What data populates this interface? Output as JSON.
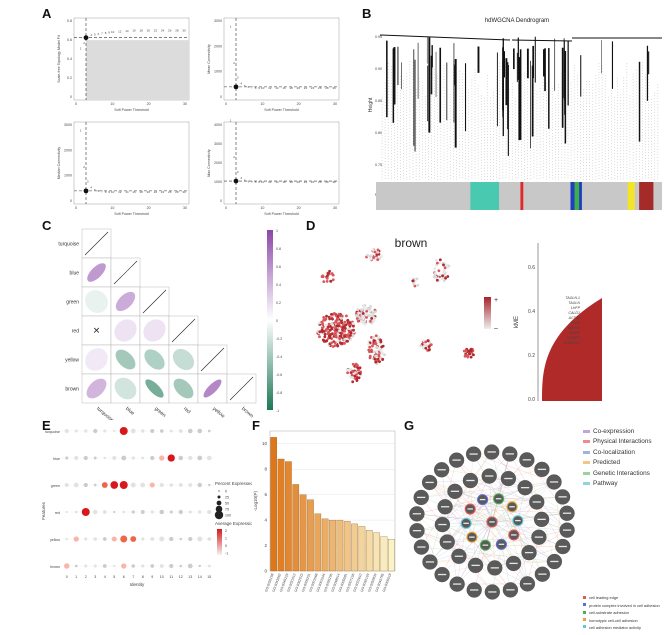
{
  "panels": {
    "A": "A",
    "B": "B",
    "C": "C",
    "D": "D",
    "E": "E",
    "F": "F",
    "G": "G"
  },
  "panel_A": {
    "plots": [
      {
        "ylabel": "Scale-free Topology Model Fit",
        "xlabel": "Soft Power Threshold",
        "yticks": [
          "0.8",
          "0.6",
          "0.4",
          "0.2",
          "0"
        ],
        "xticks": [
          "0",
          "10",
          "20",
          "30"
        ]
      },
      {
        "ylabel": "Mean Connectivity",
        "xlabel": "Soft Power Threshold",
        "yticks": [
          "3000",
          "2000",
          "1000",
          "0"
        ],
        "xticks": [
          "0",
          "10",
          "20",
          "30"
        ]
      },
      {
        "ylabel": "Median Connectivity",
        "xlabel": "Soft Power Threshold",
        "yticks": [
          "3000",
          "2000",
          "1000",
          "0"
        ],
        "xticks": [
          "0",
          "10",
          "20",
          "30"
        ]
      },
      {
        "ylabel": "Max Connectivity",
        "xlabel": "Soft Power Threshold",
        "yticks": [
          "4000",
          "3000",
          "2000",
          "1000",
          "0"
        ],
        "xticks": [
          "0",
          "10",
          "20",
          "30"
        ]
      }
    ],
    "power_labels": [
      "1",
      "2",
      "3",
      "4",
      "5",
      "6",
      "7",
      "8",
      "9",
      "10",
      "12",
      "14",
      "16",
      "18",
      "20",
      "22",
      "24",
      "26",
      "28",
      "30"
    ]
  },
  "panel_B": {
    "title": "hdWGCNA Dendrogram",
    "ylabel": "Height",
    "yticks": [
      "0.95",
      "0.90",
      "0.85",
      "0.80",
      "0.75"
    ],
    "module_label": "Module colors",
    "module_bars": [
      {
        "color": "#48c9b0",
        "from": 0.33,
        "to": 0.43
      },
      {
        "color": "#e02828",
        "from": 0.505,
        "to": 0.515
      },
      {
        "color": "#1f3fbf",
        "from": 0.68,
        "to": 0.695
      },
      {
        "color": "#3cb043",
        "from": 0.695,
        "to": 0.71
      },
      {
        "color": "#1f3fbf",
        "from": 0.71,
        "to": 0.72
      },
      {
        "color": "#f3e427",
        "from": 0.88,
        "to": 0.905
      },
      {
        "color": "#a52a2a",
        "from": 0.92,
        "to": 0.97
      }
    ]
  },
  "panel_C": {
    "modules": [
      "turquoise",
      "blue",
      "green",
      "red",
      "yellow",
      "brown"
    ],
    "colorbar_ticks": [
      "1",
      "0.8",
      "0.6",
      "0.4",
      "0.2",
      "0",
      "-0.2",
      "-0.4",
      "-0.6",
      "-0.8",
      "-1"
    ],
    "cells": [
      {
        "r": 1,
        "c": 0,
        "v": 0.55
      },
      {
        "r": 2,
        "c": 0,
        "v": -0.1
      },
      {
        "r": 2,
        "c": 1,
        "v": 0.45
      },
      {
        "r": 3,
        "c": 0,
        "v": 0.0,
        "x": true
      },
      {
        "r": 3,
        "c": 1,
        "v": 0.15
      },
      {
        "r": 3,
        "c": 2,
        "v": 0.15
      },
      {
        "r": 4,
        "c": 0,
        "v": 0.12
      },
      {
        "r": 4,
        "c": 1,
        "v": -0.4
      },
      {
        "r": 4,
        "c": 2,
        "v": -0.35
      },
      {
        "r": 4,
        "c": 3,
        "v": -0.25
      },
      {
        "r": 5,
        "c": 0,
        "v": 0.4
      },
      {
        "r": 5,
        "c": 1,
        "v": -0.2
      },
      {
        "r": 5,
        "c": 2,
        "v": -0.6
      },
      {
        "r": 5,
        "c": 3,
        "v": -0.4
      },
      {
        "r": 5,
        "c": 4,
        "v": 0.65
      }
    ]
  },
  "panel_D": {
    "title": "brown",
    "ylabel": "kME",
    "yticks": [
      "0.6",
      "0.4",
      "0.2",
      "0.0"
    ],
    "legend_plus": "+",
    "legend_minus": "–",
    "genes": [
      "TAGLN,1",
      "TAGLN",
      "LHFP",
      "CALD1",
      "ACTA2",
      "TPM2",
      "MEF2C",
      "ADIRF",
      "IGFBP7",
      "SPARCL1"
    ]
  },
  "panel_E": {
    "ylabel": "Features",
    "xlabel": "Identity",
    "features": [
      "turquoise",
      "blue",
      "green",
      "red",
      "yellow",
      "brown"
    ],
    "identities": [
      "0",
      "1",
      "2",
      "3",
      "4",
      "5",
      "6",
      "7",
      "8",
      "9",
      "10",
      "11",
      "12",
      "13",
      "14",
      "15"
    ],
    "legend_pct_title": "Percent Expressed",
    "legend_pct": [
      "0",
      "25",
      "50",
      "75",
      "100"
    ],
    "legend_avg_title": "Average Expression",
    "legend_avg": [
      "2",
      "1",
      "0",
      "-1"
    ]
  },
  "panel_F": {
    "ylabel": "-Log10(P)",
    "yticks": [
      "10",
      "8",
      "6",
      "4",
      "2",
      "0"
    ],
    "ylim": [
      0,
      11
    ],
    "bars": [
      {
        "label": "GO:0030198",
        "value": 10.5
      },
      {
        "label": "GO:0043062",
        "value": 8.8
      },
      {
        "label": "GO:0045229",
        "value": 8.6
      },
      {
        "label": "GO:0031012",
        "value": 6.8
      },
      {
        "label": "GO:0062023",
        "value": 6.0
      },
      {
        "label": "GO:0005201",
        "value": 5.6
      },
      {
        "label": "GO:0001568",
        "value": 4.5
      },
      {
        "label": "GO:0001944",
        "value": 4.1
      },
      {
        "label": "GO:0035295",
        "value": 4.0
      },
      {
        "label": "GO:0048514",
        "value": 4.0
      },
      {
        "label": "GO:0005581",
        "value": 3.9
      },
      {
        "label": "GO:0007155",
        "value": 3.7
      },
      {
        "label": "GO:0022610",
        "value": 3.5
      },
      {
        "label": "GO:0030199",
        "value": 3.2
      },
      {
        "label": "GO:0050839",
        "value": 3.0
      },
      {
        "label": "GO:0045785",
        "value": 2.7
      },
      {
        "label": "GO:0005518",
        "value": 2.5
      }
    ]
  },
  "panel_G": {
    "legend_types": [
      {
        "label": "Co-expression",
        "color": "#c4a6d6"
      },
      {
        "label": "Physical Interactions",
        "color": "#f08b8b"
      },
      {
        "label": "Co-localization",
        "color": "#9fb4d8"
      },
      {
        "label": "Predicted",
        "color": "#f5c48a"
      },
      {
        "label": "Genetic Interactions",
        "color": "#9ad39a"
      },
      {
        "label": "Pathway",
        "color": "#8fd4e0"
      }
    ],
    "legend_functions": [
      {
        "label": "cell leading edge",
        "color": "#e05a5a"
      },
      {
        "label": "protein complex involved in cell adhesion",
        "color": "#5b6fd6"
      },
      {
        "label": "cell-substrate adhesion",
        "color": "#4caf50"
      },
      {
        "label": "homotypic cell-cell adhesion",
        "color": "#e8a33c"
      },
      {
        "label": "cell adhesion mediator activity",
        "color": "#5fc9d9"
      }
    ]
  }
}
